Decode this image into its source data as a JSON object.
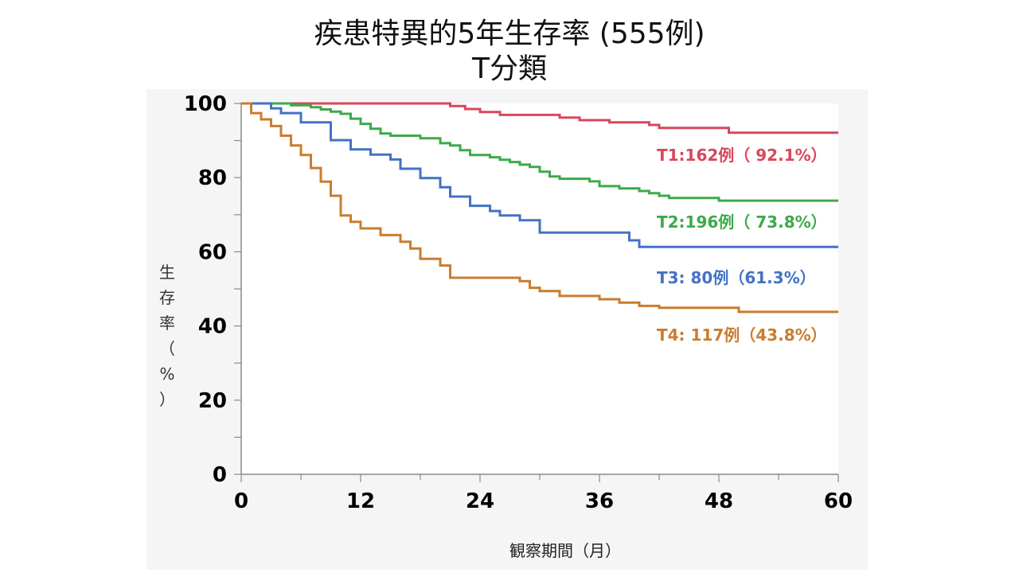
{
  "page": {
    "title_line1": "疾患特異的5年生存率 (555例)",
    "title_line2": "T分類"
  },
  "chart_data": {
    "type": "line",
    "step": true,
    "xlabel": "観察期間（月）",
    "ylabel_chars": [
      "生",
      "存",
      "率",
      "（",
      "%",
      "）"
    ],
    "xlim": [
      0,
      60
    ],
    "ylim": [
      0,
      100
    ],
    "xticks": [
      0,
      12,
      24,
      36,
      48,
      60
    ],
    "yticks": [
      0,
      20,
      40,
      60,
      80,
      100
    ],
    "grid": false,
    "series": [
      {
        "name": "T1:162例（ 92.1%）",
        "color": "#d9475b",
        "points": [
          [
            0,
            100
          ],
          [
            21,
            100
          ],
          [
            21,
            99.3
          ],
          [
            22.5,
            99.3
          ],
          [
            22.5,
            98.5
          ],
          [
            24,
            98.5
          ],
          [
            24,
            97.7
          ],
          [
            26,
            97.7
          ],
          [
            26,
            96.9
          ],
          [
            32,
            96.9
          ],
          [
            32,
            96.2
          ],
          [
            34,
            96.2
          ],
          [
            34,
            95.5
          ],
          [
            37,
            95.5
          ],
          [
            37,
            94.9
          ],
          [
            41,
            94.9
          ],
          [
            41,
            94.2
          ],
          [
            42,
            94.2
          ],
          [
            42,
            93.4
          ],
          [
            49,
            93.4
          ],
          [
            49,
            92.1
          ],
          [
            60,
            92.1
          ]
        ]
      },
      {
        "name": "T2:196例（ 73.8%）",
        "color": "#3daa4a",
        "points": [
          [
            0,
            100
          ],
          [
            5,
            100
          ],
          [
            5,
            99.5
          ],
          [
            7,
            99.5
          ],
          [
            7,
            99
          ],
          [
            8,
            99
          ],
          [
            8,
            98.4
          ],
          [
            9,
            98.4
          ],
          [
            9,
            97.8
          ],
          [
            10,
            97.8
          ],
          [
            10,
            97.2
          ],
          [
            11,
            97.2
          ],
          [
            11,
            95.9
          ],
          [
            12,
            95.9
          ],
          [
            12,
            94.5
          ],
          [
            13,
            94.5
          ],
          [
            13,
            93.2
          ],
          [
            14,
            93.2
          ],
          [
            14,
            91.9
          ],
          [
            15,
            91.9
          ],
          [
            15,
            91.3
          ],
          [
            18,
            91.3
          ],
          [
            18,
            90.6
          ],
          [
            20,
            90.6
          ],
          [
            20,
            89.3
          ],
          [
            21,
            89.3
          ],
          [
            21,
            88.7
          ],
          [
            22,
            88.7
          ],
          [
            22,
            87.4
          ],
          [
            23,
            87.4
          ],
          [
            23,
            86.1
          ],
          [
            25,
            86.1
          ],
          [
            25,
            85.5
          ],
          [
            26,
            85.5
          ],
          [
            26,
            84.8
          ],
          [
            27,
            84.8
          ],
          [
            27,
            84.2
          ],
          [
            28,
            84.2
          ],
          [
            28,
            83.5
          ],
          [
            29,
            83.5
          ],
          [
            29,
            82.9
          ],
          [
            30,
            82.9
          ],
          [
            30,
            81.6
          ],
          [
            31,
            81.6
          ],
          [
            31,
            80.3
          ],
          [
            32,
            80.3
          ],
          [
            32,
            79.7
          ],
          [
            35,
            79.7
          ],
          [
            35,
            79
          ],
          [
            36,
            79
          ],
          [
            36,
            77.7
          ],
          [
            38,
            77.7
          ],
          [
            38,
            77.1
          ],
          [
            40,
            77.1
          ],
          [
            40,
            76.4
          ],
          [
            41,
            76.4
          ],
          [
            41,
            75.8
          ],
          [
            42,
            75.8
          ],
          [
            42,
            75.1
          ],
          [
            43,
            75.1
          ],
          [
            43,
            74.5
          ],
          [
            48,
            74.5
          ],
          [
            48,
            73.8
          ],
          [
            60,
            73.8
          ]
        ]
      },
      {
        "name": "T3: 80例（61.3%）",
        "color": "#4472c4",
        "points": [
          [
            0,
            100
          ],
          [
            3,
            100
          ],
          [
            3,
            98.7
          ],
          [
            4,
            98.7
          ],
          [
            4,
            97.4
          ],
          [
            6,
            97.4
          ],
          [
            6,
            94.9
          ],
          [
            9,
            94.9
          ],
          [
            9,
            90.1
          ],
          [
            11,
            90.1
          ],
          [
            11,
            87.6
          ],
          [
            13,
            87.6
          ],
          [
            13,
            86.2
          ],
          [
            15,
            86.2
          ],
          [
            15,
            84.9
          ],
          [
            16,
            84.9
          ],
          [
            16,
            82.4
          ],
          [
            18,
            82.4
          ],
          [
            18,
            79.9
          ],
          [
            20,
            79.9
          ],
          [
            20,
            77.4
          ],
          [
            21,
            77.4
          ],
          [
            21,
            74.9
          ],
          [
            23,
            74.9
          ],
          [
            23,
            72.4
          ],
          [
            25,
            72.4
          ],
          [
            25,
            71
          ],
          [
            26,
            71
          ],
          [
            26,
            69.8
          ],
          [
            28,
            69.8
          ],
          [
            28,
            68.5
          ],
          [
            30,
            68.5
          ],
          [
            30,
            65.2
          ],
          [
            39,
            65.2
          ],
          [
            39,
            63.1
          ],
          [
            40,
            63.1
          ],
          [
            40,
            61.3
          ],
          [
            60,
            61.3
          ]
        ]
      },
      {
        "name": "T4: 117例（43.8%）",
        "color": "#c97d2e",
        "points": [
          [
            0,
            100
          ],
          [
            1,
            100
          ],
          [
            1,
            97.4
          ],
          [
            2,
            97.4
          ],
          [
            2,
            95.7
          ],
          [
            3,
            95.7
          ],
          [
            3,
            93.9
          ],
          [
            4,
            93.9
          ],
          [
            4,
            91.3
          ],
          [
            5,
            91.3
          ],
          [
            5,
            88.7
          ],
          [
            6,
            88.7
          ],
          [
            6,
            86.1
          ],
          [
            7,
            86.1
          ],
          [
            7,
            82.6
          ],
          [
            8,
            82.6
          ],
          [
            8,
            78.9
          ],
          [
            9,
            78.9
          ],
          [
            9,
            75.1
          ],
          [
            10,
            75.1
          ],
          [
            10,
            69.8
          ],
          [
            11,
            69.8
          ],
          [
            11,
            68.1
          ],
          [
            12,
            68.1
          ],
          [
            12,
            66.3
          ],
          [
            14,
            66.3
          ],
          [
            14,
            64.5
          ],
          [
            16,
            64.5
          ],
          [
            16,
            62.7
          ],
          [
            17,
            62.7
          ],
          [
            17,
            60.9
          ],
          [
            18,
            60.9
          ],
          [
            18,
            58.1
          ],
          [
            20,
            58.1
          ],
          [
            20,
            56.3
          ],
          [
            21,
            56.3
          ],
          [
            21,
            53
          ],
          [
            28,
            53
          ],
          [
            28,
            52.1
          ],
          [
            29,
            52.1
          ],
          [
            29,
            50.3
          ],
          [
            30,
            50.3
          ],
          [
            30,
            49.4
          ],
          [
            32,
            49.4
          ],
          [
            32,
            48.1
          ],
          [
            36,
            48.1
          ],
          [
            36,
            47.2
          ],
          [
            38,
            47.2
          ],
          [
            38,
            46.3
          ],
          [
            40,
            46.3
          ],
          [
            40,
            45.4
          ],
          [
            42,
            45.4
          ],
          [
            42,
            44.9
          ],
          [
            50,
            44.9
          ],
          [
            50,
            43.8
          ],
          [
            60,
            43.8
          ]
        ]
      }
    ]
  }
}
